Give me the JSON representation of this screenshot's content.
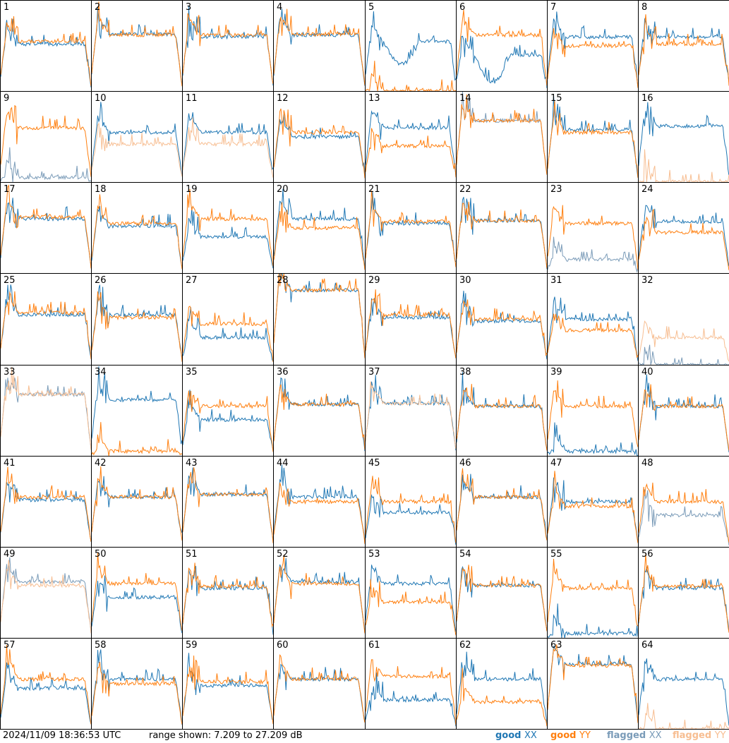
{
  "timestamp": "2024/11/09 18:36:53 UTC",
  "range_label": "range shown: 7.209 to 27.209 dB",
  "legend": [
    {
      "label": "good",
      "pol": "XX",
      "color": "#1f77b4"
    },
    {
      "label": "good",
      "pol": "YY",
      "color": "#ff7f0e"
    },
    {
      "label": "flagged",
      "pol": "XX",
      "color": "#7a9bb8"
    },
    {
      "label": "flagged",
      "pol": "YY",
      "color": "#f7be92"
    }
  ],
  "chart_data": {
    "type": "line",
    "title": "",
    "ylim": [
      7.209,
      27.209
    ],
    "yunit": "dB",
    "grid": "8x8 small multiples",
    "panels": [
      {
        "id": "1",
        "xx": "good",
        "yy": "good",
        "xx_level": 0.52,
        "yy_level": 0.55,
        "xx_dip": 0.0,
        "yy_dip": 0.0,
        "yy_drop_end": true
      },
      {
        "id": "2",
        "xx": "good",
        "yy": "good",
        "xx_level": 0.63,
        "yy_level": 0.62
      },
      {
        "id": "3",
        "xx": "good",
        "yy": "good",
        "xx_level": 0.6,
        "yy_level": 0.62
      },
      {
        "id": "4",
        "xx": "good",
        "yy": "good",
        "xx_level": 0.62,
        "yy_level": 0.63
      },
      {
        "id": "5",
        "xx": "good",
        "yy": "good",
        "xx_level": 0.55,
        "yy_level": 0.0,
        "xx_dip": 0.25
      },
      {
        "id": "6",
        "xx": "good",
        "yy": "good",
        "xx_level": 0.4,
        "yy_level": 0.62,
        "xx_dip": 0.3
      },
      {
        "id": "7",
        "xx": "good",
        "yy": "good",
        "xx_level": 0.6,
        "yy_level": 0.5
      },
      {
        "id": "8",
        "xx": "good",
        "yy": "good",
        "xx_level": 0.6,
        "yy_level": 0.52
      },
      {
        "id": "9",
        "xx": "flagged",
        "yy": "good",
        "xx_level": 0.05,
        "yy_level": 0.6
      },
      {
        "id": "10",
        "xx": "good",
        "yy": "flagged",
        "xx_level": 0.55,
        "yy_level": 0.42
      },
      {
        "id": "11",
        "xx": "good",
        "yy": "flagged",
        "xx_level": 0.55,
        "yy_level": 0.42
      },
      {
        "id": "12",
        "xx": "good",
        "yy": "good",
        "xx_level": 0.5,
        "yy_level": 0.55
      },
      {
        "id": "13",
        "xx": "good",
        "yy": "good",
        "xx_level": 0.6,
        "yy_level": 0.4
      },
      {
        "id": "14",
        "xx": "flagged",
        "yy": "good",
        "xx_level": 0.68,
        "yy_level": 0.68
      },
      {
        "id": "15",
        "xx": "good",
        "yy": "good",
        "xx_level": 0.58,
        "yy_level": 0.55
      },
      {
        "id": "16",
        "xx": "good",
        "yy": "flagged",
        "xx_level": 0.62,
        "yy_level": 0.0
      },
      {
        "id": "17",
        "xx": "good",
        "yy": "good",
        "xx_level": 0.6,
        "yy_level": 0.62
      },
      {
        "id": "18",
        "xx": "good",
        "yy": "good",
        "xx_level": 0.52,
        "yy_level": 0.55
      },
      {
        "id": "19",
        "xx": "good",
        "yy": "good",
        "xx_level": 0.4,
        "yy_level": 0.6
      },
      {
        "id": "20",
        "xx": "good",
        "yy": "good",
        "xx_level": 0.6,
        "yy_level": 0.5
      },
      {
        "id": "21",
        "xx": "good",
        "yy": "good",
        "xx_level": 0.55,
        "yy_level": 0.57
      },
      {
        "id": "22",
        "xx": "good",
        "yy": "good",
        "xx_level": 0.58,
        "yy_level": 0.58
      },
      {
        "id": "23",
        "xx": "flagged",
        "yy": "good",
        "xx_level": 0.15,
        "yy_level": 0.55
      },
      {
        "id": "24",
        "xx": "good",
        "yy": "good",
        "xx_level": 0.57,
        "yy_level": 0.45
      },
      {
        "id": "25",
        "xx": "good",
        "yy": "good",
        "xx_level": 0.55,
        "yy_level": 0.57
      },
      {
        "id": "26",
        "xx": "good",
        "yy": "good",
        "xx_level": 0.55,
        "yy_level": 0.52
      },
      {
        "id": "27",
        "xx": "good",
        "yy": "good",
        "xx_level": 0.3,
        "yy_level": 0.45
      },
      {
        "id": "28",
        "xx": "good",
        "yy": "good",
        "xx_level": 0.82,
        "yy_level": 0.82
      },
      {
        "id": "29",
        "xx": "good",
        "yy": "good",
        "xx_level": 0.52,
        "yy_level": 0.55
      },
      {
        "id": "30",
        "xx": "good",
        "yy": "good",
        "xx_level": 0.48,
        "yy_level": 0.5
      },
      {
        "id": "31",
        "xx": "good",
        "yy": "good",
        "xx_level": 0.5,
        "yy_level": 0.38
      },
      {
        "id": "32",
        "xx": "flagged",
        "yy": "flagged",
        "xx_level": 0.0,
        "yy_level": 0.3
      },
      {
        "id": "33",
        "xx": "flagged",
        "yy": "flagged",
        "xx_level": 0.68,
        "yy_level": 0.68
      },
      {
        "id": "34",
        "xx": "good",
        "yy": "good",
        "xx_level": 0.62,
        "yy_level": 0.05
      },
      {
        "id": "35",
        "xx": "good",
        "yy": "good",
        "xx_level": 0.4,
        "yy_level": 0.55
      },
      {
        "id": "36",
        "xx": "good",
        "yy": "good",
        "xx_level": 0.57,
        "yy_level": 0.57
      },
      {
        "id": "37",
        "xx": "good",
        "yy": "flagged",
        "xx_level": 0.58,
        "yy_level": 0.58
      },
      {
        "id": "38",
        "xx": "good",
        "yy": "good",
        "xx_level": 0.55,
        "yy_level": 0.55
      },
      {
        "id": "39",
        "xx": "good",
        "yy": "good",
        "xx_level": 0.05,
        "yy_level": 0.55
      },
      {
        "id": "40",
        "xx": "good",
        "yy": "good",
        "xx_level": 0.55,
        "yy_level": 0.55
      },
      {
        "id": "41",
        "xx": "good",
        "yy": "good",
        "xx_level": 0.52,
        "yy_level": 0.55
      },
      {
        "id": "42",
        "xx": "good",
        "yy": "good",
        "xx_level": 0.55,
        "yy_level": 0.55
      },
      {
        "id": "43",
        "xx": "good",
        "yy": "good",
        "xx_level": 0.58,
        "yy_level": 0.58
      },
      {
        "id": "44",
        "xx": "good",
        "yy": "good",
        "xx_level": 0.55,
        "yy_level": 0.5
      },
      {
        "id": "45",
        "xx": "good",
        "yy": "good",
        "xx_level": 0.38,
        "yy_level": 0.5
      },
      {
        "id": "46",
        "xx": "good",
        "yy": "good",
        "xx_level": 0.55,
        "yy_level": 0.55
      },
      {
        "id": "47",
        "xx": "good",
        "yy": "good",
        "xx_level": 0.5,
        "yy_level": 0.45
      },
      {
        "id": "48",
        "xx": "flagged",
        "yy": "good",
        "xx_level": 0.35,
        "yy_level": 0.5
      },
      {
        "id": "49",
        "xx": "flagged",
        "yy": "flagged",
        "xx_level": 0.62,
        "yy_level": 0.58
      },
      {
        "id": "50",
        "xx": "good",
        "yy": "good",
        "xx_level": 0.45,
        "yy_level": 0.6
      },
      {
        "id": "51",
        "xx": "good",
        "yy": "good",
        "xx_level": 0.55,
        "yy_level": 0.57
      },
      {
        "id": "52",
        "xx": "good",
        "yy": "good",
        "xx_level": 0.62,
        "yy_level": 0.6
      },
      {
        "id": "53",
        "xx": "good",
        "yy": "good",
        "xx_level": 0.6,
        "yy_level": 0.4
      },
      {
        "id": "54",
        "xx": "good",
        "yy": "good",
        "xx_level": 0.58,
        "yy_level": 0.58
      },
      {
        "id": "55",
        "xx": "good",
        "yy": "good",
        "xx_level": 0.05,
        "yy_level": 0.55
      },
      {
        "id": "56",
        "xx": "good",
        "yy": "good",
        "xx_level": 0.55,
        "yy_level": 0.57
      },
      {
        "id": "57",
        "xx": "good",
        "yy": "good",
        "xx_level": 0.45,
        "yy_level": 0.55
      },
      {
        "id": "58",
        "xx": "good",
        "yy": "good",
        "xx_level": 0.55,
        "yy_level": 0.5
      },
      {
        "id": "59",
        "xx": "good",
        "yy": "good",
        "xx_level": 0.48,
        "yy_level": 0.52
      },
      {
        "id": "60",
        "xx": "good",
        "yy": "good",
        "xx_level": 0.55,
        "yy_level": 0.55
      },
      {
        "id": "61",
        "xx": "good",
        "yy": "good",
        "xx_level": 0.32,
        "yy_level": 0.58
      },
      {
        "id": "62",
        "xx": "good",
        "yy": "good",
        "xx_level": 0.55,
        "yy_level": 0.3
      },
      {
        "id": "63",
        "xx": "good",
        "yy": "good",
        "xx_level": 0.72,
        "yy_level": 0.7
      },
      {
        "id": "64",
        "xx": "good",
        "yy": "flagged",
        "xx_level": 0.55,
        "yy_level": 0.0
      }
    ]
  }
}
